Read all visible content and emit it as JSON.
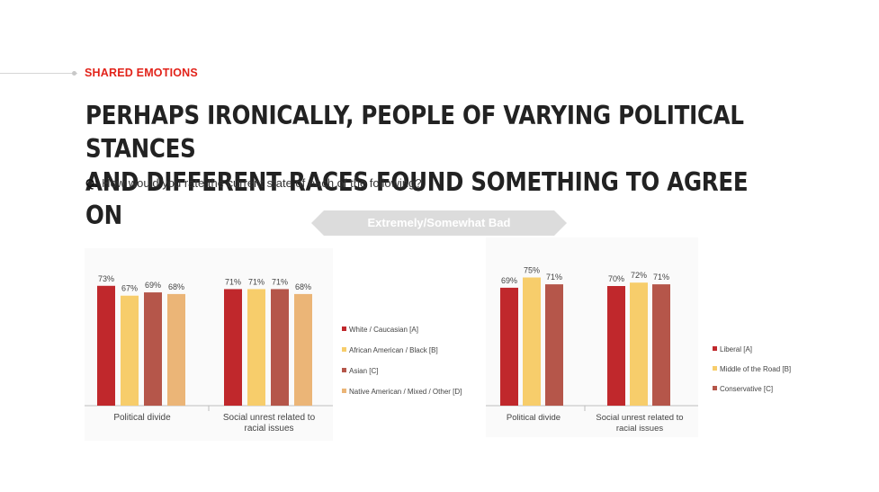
{
  "section": {
    "label": "SHARED EMOTIONS"
  },
  "headline": {
    "line1": "PERHAPS IRONICALLY, PEOPLE OF VARYING POLITICAL STANCES",
    "line2": "AND DIFFERENT RACES FOUND SOMETHING TO AGREE ON"
  },
  "question": {
    "prefix": "Q:",
    "text": "How would you rate the current state of each of the following?"
  },
  "banner": {
    "label": "Extremely/Somewhat Bad",
    "color": "#dcdcdc"
  },
  "chart_data": [
    {
      "type": "bar",
      "title": "",
      "categories": [
        "Political divide",
        "Social unrest related to racial issues"
      ],
      "ylim": [
        0,
        80
      ],
      "series": [
        {
          "name": "White / Caucasian [A]",
          "color": "#c0282c",
          "values": [
            73,
            71
          ],
          "labels": [
            "73%",
            "71%"
          ]
        },
        {
          "name": "African American / Black [B]",
          "color": "#f7cd6b",
          "values": [
            67,
            71
          ],
          "labels": [
            "67%",
            "71%"
          ]
        },
        {
          "name": "Asian [C]",
          "color": "#b5564a",
          "values": [
            69,
            71
          ],
          "labels": [
            "69%",
            "71%"
          ]
        },
        {
          "name": "Native American / Mixed / Other [D]",
          "color": "#ebb577",
          "values": [
            68,
            68
          ],
          "labels": [
            "68%",
            "68%"
          ]
        }
      ],
      "legend_position": "right",
      "grid": false
    },
    {
      "type": "bar",
      "title": "",
      "categories": [
        "Political divide",
        "Social unrest related to racial issues"
      ],
      "ylim": [
        0,
        80
      ],
      "series": [
        {
          "name": "Liberal [A]",
          "color": "#c0282c",
          "values": [
            69,
            70
          ],
          "labels": [
            "69%",
            "70%"
          ]
        },
        {
          "name": "Middle of the Road [B]",
          "color": "#f7cd6b",
          "values": [
            75,
            72
          ],
          "labels": [
            "75%",
            "72%"
          ]
        },
        {
          "name": "Conservative [C]",
          "color": "#b5564a",
          "values": [
            71,
            71
          ],
          "labels": [
            "71%",
            "71%"
          ]
        }
      ],
      "legend_position": "right",
      "grid": false
    }
  ]
}
